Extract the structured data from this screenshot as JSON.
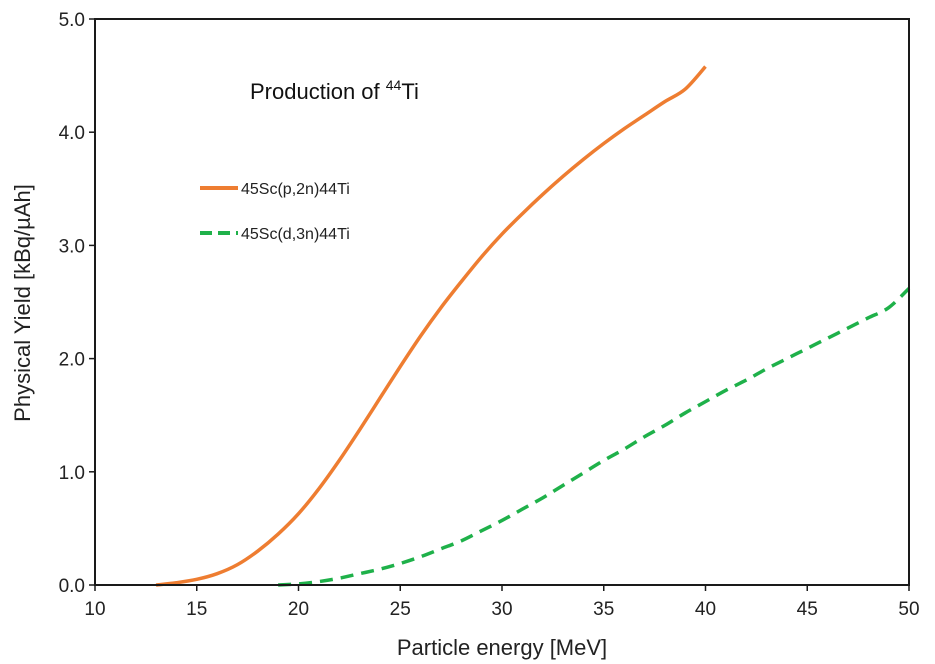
{
  "chart_data": {
    "type": "line",
    "title": "",
    "annotation": {
      "prefix": "Production of ",
      "superscript": "44",
      "suffix": "Ti"
    },
    "xlabel": "Particle energy [MeV]",
    "ylabel": "Physical Yield [kBq/µAh]",
    "xlim": [
      10,
      50
    ],
    "ylim": [
      0,
      5
    ],
    "x_ticks": [
      "10",
      "15",
      "20",
      "25",
      "30",
      "35",
      "40",
      "45",
      "50"
    ],
    "y_ticks": [
      "0.0",
      "1.0",
      "2.0",
      "3.0",
      "4.0",
      "5.0"
    ],
    "grid": false,
    "legend_position": "upper-left",
    "series": [
      {
        "name": "45Sc(p,2n)44Ti",
        "color": "#ee7d31",
        "style": "solid",
        "x": [
          13,
          14,
          15,
          16,
          17,
          18,
          19,
          20,
          21,
          22,
          23,
          24,
          25,
          26,
          27,
          28,
          29,
          30,
          31,
          32,
          33,
          34,
          35,
          36,
          37,
          38,
          39,
          40
        ],
        "y": [
          0.0,
          0.02,
          0.05,
          0.1,
          0.18,
          0.3,
          0.45,
          0.63,
          0.85,
          1.1,
          1.37,
          1.65,
          1.93,
          2.2,
          2.45,
          2.68,
          2.9,
          3.1,
          3.28,
          3.45,
          3.61,
          3.76,
          3.9,
          4.03,
          4.15,
          4.27,
          4.38,
          4.58
        ]
      },
      {
        "name": "45Sc(d,3n)44Ti",
        "color": "#1fb14a",
        "style": "dashed",
        "x": [
          19,
          20,
          21,
          22,
          23,
          24,
          25,
          26,
          27,
          28,
          29,
          30,
          31,
          32,
          33,
          34,
          35,
          36,
          37,
          38,
          39,
          40,
          41,
          42,
          43,
          44,
          45,
          46,
          47,
          48,
          49,
          50
        ],
        "y": [
          0.0,
          0.01,
          0.03,
          0.06,
          0.1,
          0.14,
          0.19,
          0.25,
          0.32,
          0.39,
          0.48,
          0.57,
          0.67,
          0.77,
          0.88,
          0.99,
          1.1,
          1.2,
          1.31,
          1.41,
          1.52,
          1.62,
          1.72,
          1.81,
          1.91,
          2.0,
          2.09,
          2.18,
          2.27,
          2.36,
          2.45,
          2.62
        ]
      }
    ]
  }
}
